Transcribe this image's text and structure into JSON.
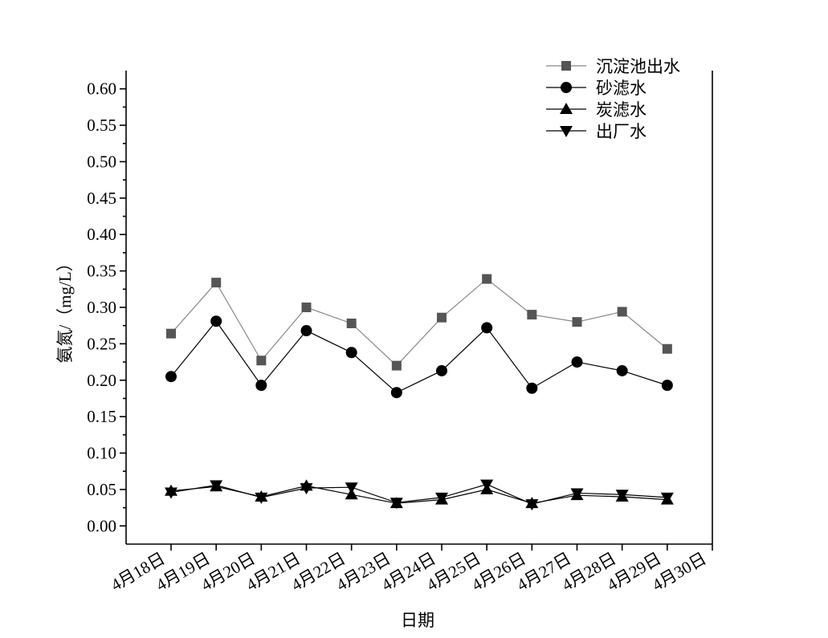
{
  "chart_data": {
    "type": "line",
    "xlabel": "日期",
    "ylabel": "氨氮/（mg/L）",
    "categories": [
      "4月18日",
      "4月19日",
      "4月20日",
      "4月21日",
      "4月22日",
      "4月23日",
      "4月24日",
      "4月25日",
      "4月26日",
      "4月27日",
      "4月28日",
      "4月29日",
      "4月30日"
    ],
    "series": [
      {
        "name": "沉淀池出水",
        "color": "#555555",
        "line_color": "#888888",
        "marker": "square",
        "values": [
          0.264,
          0.334,
          0.227,
          0.3,
          0.278,
          0.22,
          0.286,
          0.339,
          0.29,
          0.28,
          0.294,
          0.243,
          null
        ]
      },
      {
        "name": "砂滤水",
        "color": "#000000",
        "line_color": "#000000",
        "marker": "circle",
        "values": [
          0.205,
          0.281,
          0.193,
          0.268,
          0.238,
          0.183,
          0.213,
          0.272,
          0.189,
          0.225,
          0.213,
          0.193,
          null
        ]
      },
      {
        "name": "炭滤水",
        "color": "#000000",
        "line_color": "#000000",
        "marker": "triangle-up",
        "values": [
          0.048,
          0.054,
          0.04,
          0.055,
          0.043,
          0.031,
          0.036,
          0.05,
          0.031,
          0.042,
          0.04,
          0.036,
          null
        ]
      },
      {
        "name": "出厂水",
        "color": "#000000",
        "line_color": "#000000",
        "marker": "triangle-down",
        "values": [
          0.046,
          0.056,
          0.039,
          0.052,
          0.053,
          0.032,
          0.039,
          0.057,
          0.03,
          0.045,
          0.043,
          0.039,
          null
        ]
      }
    ],
    "ylim": [
      -0.025,
      0.625
    ],
    "yticks": [
      {
        "value": 0,
        "label": "0.00"
      },
      {
        "value": 0.05,
        "label": "0.05"
      },
      {
        "value": 0.1,
        "label": "0.10"
      },
      {
        "value": 0.15,
        "label": "0.15"
      },
      {
        "value": 0.2,
        "label": "0.20"
      },
      {
        "value": 0.25,
        "label": "0.25"
      },
      {
        "value": 0.3,
        "label": "0.30"
      },
      {
        "value": 0.35,
        "label": "0.35"
      },
      {
        "value": 0.4,
        "label": "0.40"
      },
      {
        "value": 0.45,
        "label": "0.45"
      },
      {
        "value": 0.5,
        "label": "0.50"
      },
      {
        "value": 0.55,
        "label": "0.55"
      },
      {
        "value": 0.6,
        "label": "0.60"
      }
    ],
    "legend": "upper right",
    "grid": false
  }
}
